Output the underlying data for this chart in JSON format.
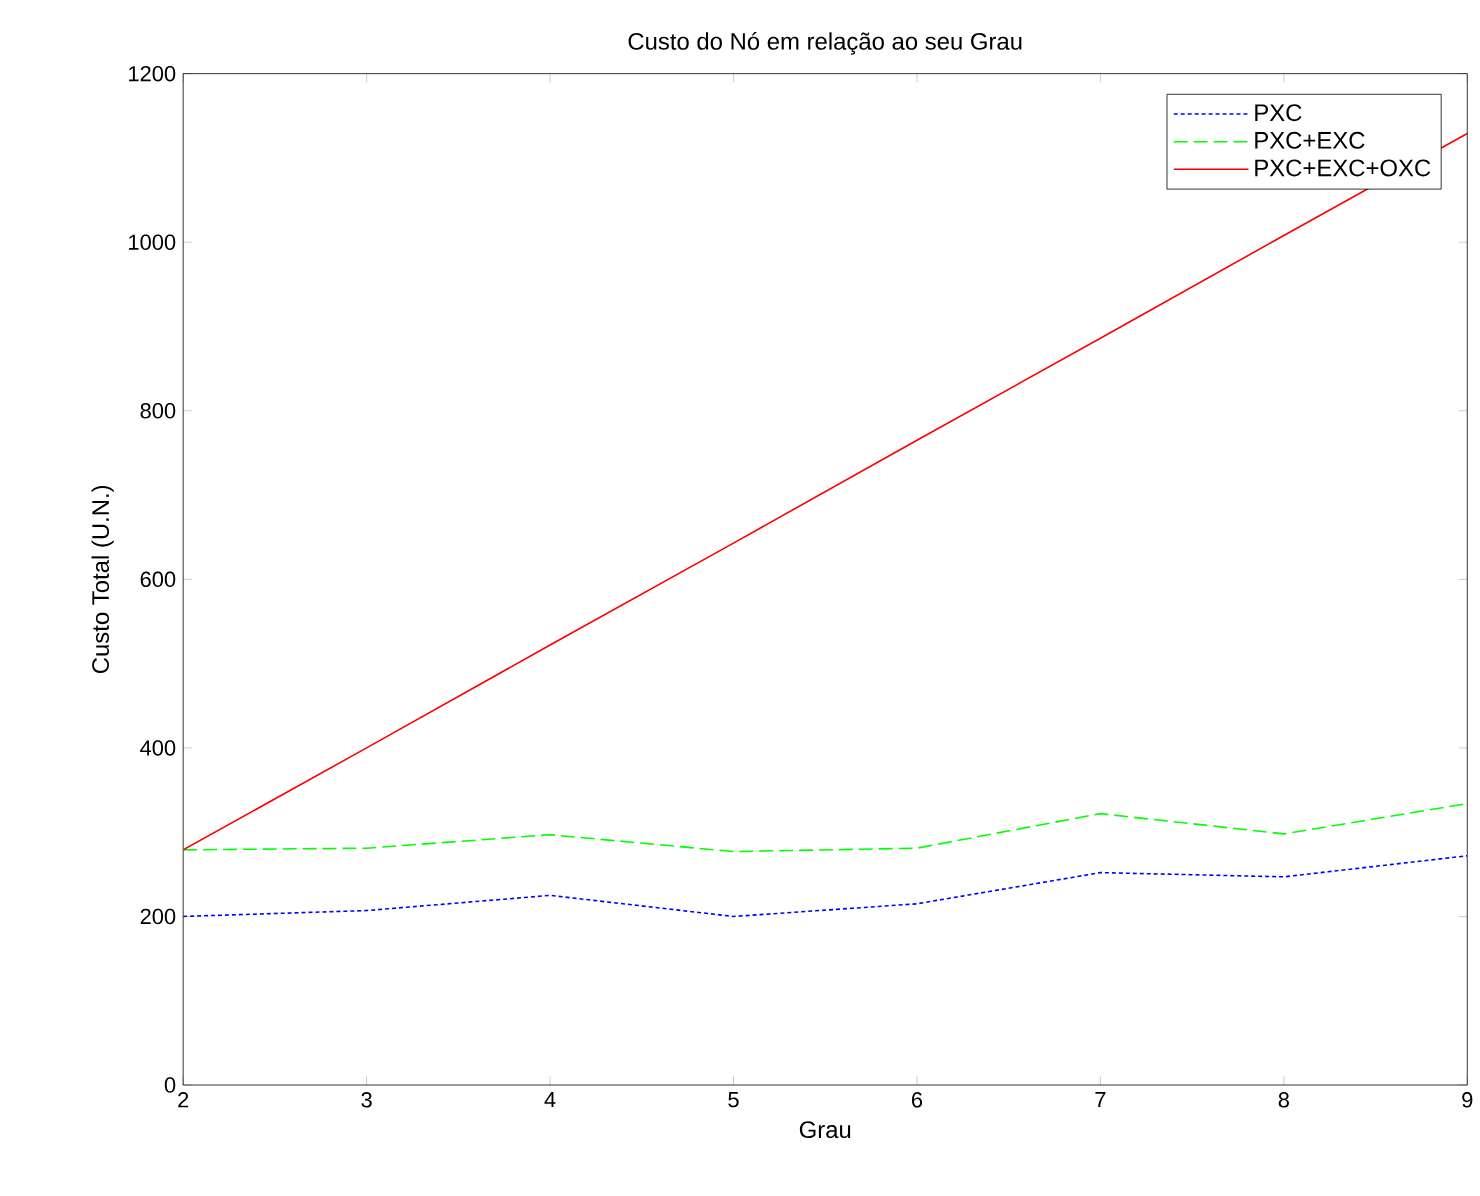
{
  "chart_data": {
    "type": "line",
    "title": "Custo do Nó em relação ao seu Grau",
    "xlabel": "Grau",
    "ylabel": "Custo Total (U.N.)",
    "x": [
      2,
      3,
      4,
      5,
      6,
      7,
      8,
      9
    ],
    "series": [
      {
        "name": "PXC",
        "color": "#0000ff",
        "line_style": "dotted",
        "values": [
          200,
          207,
          225,
          200,
          215,
          252,
          247,
          272
        ]
      },
      {
        "name": "PXC+EXC",
        "color": "#00ff00",
        "line_style": "dashed",
        "values": [
          279,
          281,
          297,
          277,
          281,
          322,
          298,
          334
        ]
      },
      {
        "name": "PXC+EXC+OXC",
        "color": "#ff0000",
        "line_style": "solid",
        "values": [
          279,
          400,
          522,
          643,
          765,
          886,
          1008,
          1129
        ]
      }
    ],
    "xlim": [
      2,
      9
    ],
    "ylim": [
      0,
      1200
    ],
    "xticks": [
      2,
      3,
      4,
      5,
      6,
      7,
      8,
      9
    ],
    "yticks": [
      0,
      200,
      400,
      600,
      800,
      1000,
      1200
    ],
    "legend": "top right",
    "grid": false,
    "marker": "none"
  }
}
